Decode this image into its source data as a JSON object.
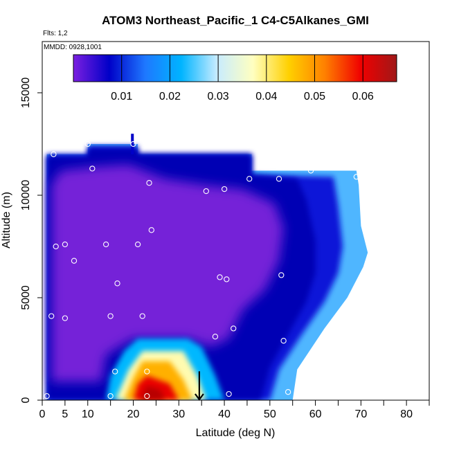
{
  "chart_data": {
    "type": "heatmap",
    "title": "ATOM3 Northeast_Pacific_1 C4-C5Alkanes_GMI",
    "flights_note": "Flts: 1,2",
    "date_note": "MMDD: 0928,1001",
    "xlabel": "Latitude (deg N)",
    "ylabel": "Altitude (m)",
    "xlim": [
      0,
      85
    ],
    "ylim": [
      0,
      17500
    ],
    "x_ticks": [
      0,
      5,
      10,
      20,
      30,
      40,
      50,
      60,
      70,
      80
    ],
    "x_minor_ticks": [
      15,
      25,
      35,
      45,
      55,
      65,
      75,
      85
    ],
    "y_ticks": [
      0,
      5000,
      10000,
      15000
    ],
    "colorbar": {
      "range": [
        0,
        0.067
      ],
      "ticks": [
        0.01,
        0.02,
        0.03,
        0.04,
        0.05,
        0.06
      ],
      "tick_labels": [
        "0.01",
        "0.02",
        "0.03",
        "0.04",
        "0.05",
        "0.06"
      ],
      "colors": [
        "#7b1fe0",
        "#0000c8",
        "#1e78ff",
        "#00b4ff",
        "#c8ecff",
        "#ffffc0",
        "#ffd000",
        "#ff8000",
        "#f00000",
        "#a01818"
      ]
    },
    "field_colors": {
      "background_low": "#7a22d8",
      "mid_level": "#0a0ad0",
      "plume_core": "#e80000"
    },
    "obs_points": [
      [
        1,
        200
      ],
      [
        2,
        4100
      ],
      [
        2.5,
        12000
      ],
      [
        3,
        7500
      ],
      [
        5,
        7600
      ],
      [
        5,
        4000
      ],
      [
        7,
        6800
      ],
      [
        10,
        12500
      ],
      [
        11,
        11300
      ],
      [
        14,
        7600
      ],
      [
        15,
        4100
      ],
      [
        15,
        200
      ],
      [
        16,
        1400
      ],
      [
        16.5,
        5700
      ],
      [
        20,
        12500
      ],
      [
        21,
        7600
      ],
      [
        22,
        4100
      ],
      [
        23,
        1400
      ],
      [
        23,
        200
      ],
      [
        23.5,
        10600
      ],
      [
        24,
        8300
      ],
      [
        36,
        10200
      ],
      [
        38,
        3100
      ],
      [
        39,
        6000
      ],
      [
        40,
        10300
      ],
      [
        40.5,
        5900
      ],
      [
        41,
        300
      ],
      [
        42,
        3500
      ],
      [
        45.5,
        10800
      ],
      [
        52,
        10800
      ],
      [
        52.5,
        6100
      ],
      [
        53,
        2900
      ],
      [
        54,
        400
      ],
      [
        59,
        11200
      ],
      [
        69,
        10900
      ]
    ],
    "arrow_marker": {
      "x": 34.5,
      "y_from": 800,
      "y_to": 0
    },
    "grid": false,
    "legend": "top"
  }
}
